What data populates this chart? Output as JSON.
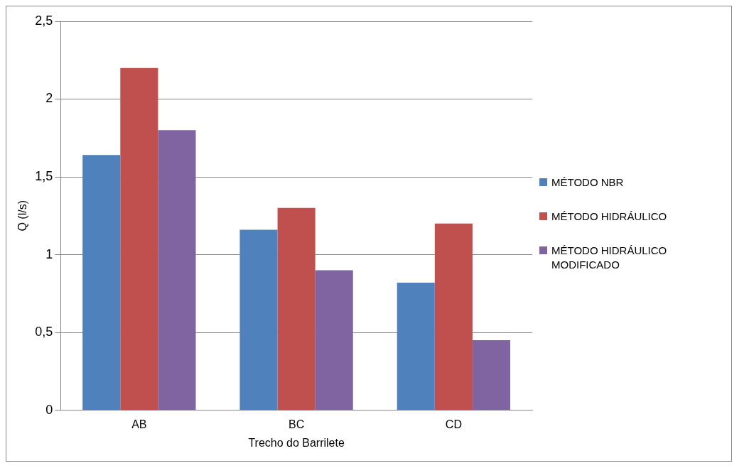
{
  "chart_data": {
    "type": "bar",
    "xlabel": "Trecho do Barrilete",
    "ylabel": "Q (l/s)",
    "categories": [
      "AB",
      "BC",
      "CD"
    ],
    "series": [
      {
        "name": "MÉTODO NBR",
        "color": "#4f81bd",
        "values": [
          1.64,
          1.16,
          0.82
        ]
      },
      {
        "name": "MÉTODO HIDRÁULICO",
        "color": "#c0504d",
        "values": [
          2.2,
          1.3,
          1.2
        ]
      },
      {
        "name": "MÉTODO HIDRÁULICO MODIFICADO",
        "color": "#8064a2",
        "values": [
          1.8,
          0.9,
          0.45
        ]
      }
    ],
    "ylim": [
      0,
      2.5
    ],
    "yticks": [
      0,
      {
        "value": 0.5,
        "label": "0,5"
      },
      1,
      {
        "value": 1.5,
        "label": "1,5"
      },
      2,
      {
        "value": 2.5,
        "label": "2,5"
      }
    ],
    "grid": "y",
    "legend": "right"
  }
}
